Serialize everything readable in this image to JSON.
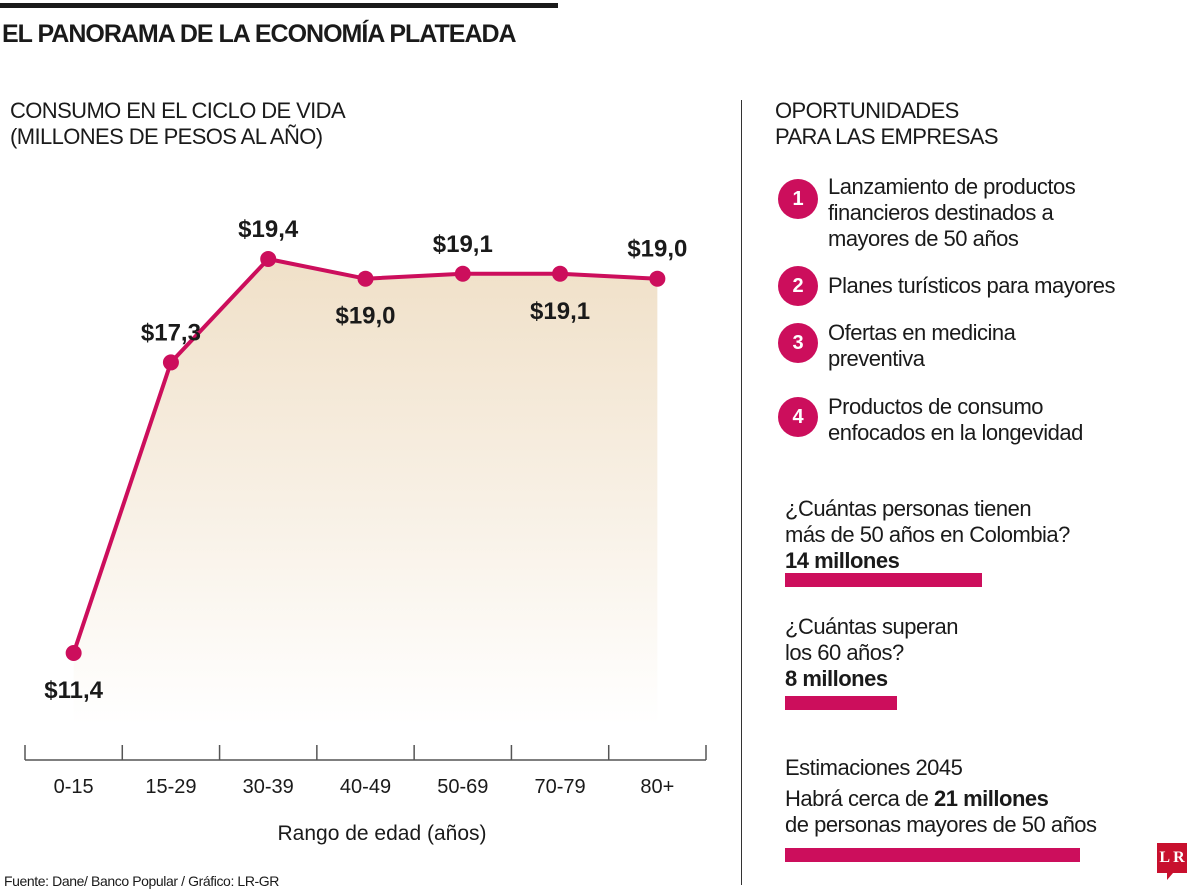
{
  "title": "EL PANORAMA DE LA ECONOMÍA PLATEADA",
  "chart_title_lines": [
    "CONSUMO EN EL CICLO DE VIDA",
    "(MILLONES DE PESOS AL AÑO)"
  ],
  "chart_data": {
    "type": "area",
    "title": "CONSUMO EN EL CICLO DE VIDA (MILLONES DE PESOS AL AÑO)",
    "xlabel": "Rango de edad (años)",
    "ylabel": "",
    "categories": [
      "0-15",
      "15-29",
      "30-39",
      "40-49",
      "50-69",
      "70-79",
      "80+"
    ],
    "values": [
      11.4,
      17.3,
      19.4,
      19.0,
      19.1,
      19.1,
      19.0
    ],
    "data_labels": [
      "$11,4",
      "$17,3",
      "$19,4",
      "$19,0",
      "$19,1",
      "$19,1",
      "$19,0"
    ],
    "label_position": [
      "below",
      "above",
      "above",
      "below",
      "above",
      "below",
      "above"
    ],
    "grid": false,
    "line_color": "#cc0e5c",
    "fill_color": "#f3e6d3"
  },
  "right": {
    "title_lines": [
      "OPORTUNIDADES",
      "PARA LAS EMPRESAS"
    ],
    "items": [
      {
        "num": "1",
        "text": "Lanzamiento de productos financieros destinados a mayores de 50 años"
      },
      {
        "num": "2",
        "text": "Planes turísticos para mayores"
      },
      {
        "num": "3",
        "text": "Ofertas en medicina preventiva"
      },
      {
        "num": "4",
        "text": "Productos de consumo enfocados en la longevidad"
      }
    ],
    "stats": [
      {
        "q1": "¿Cuántas personas tienen",
        "q2": "más de 50 años en Colombia?",
        "answer": "14 millones",
        "value": 14
      },
      {
        "q1": "¿Cuántas superan",
        "q2": "los 60 años?",
        "answer": "8 millones",
        "value": 8
      }
    ],
    "estimate": {
      "heading": "Estimaciones 2045",
      "pre": "Habrá cerca de ",
      "bold": "21 millones",
      "line2": "de personas mayores de 50 años",
      "value": 21
    }
  },
  "source": "Fuente: Dane/ Banco Popular / Gráfico: LR-GR",
  "logo": "LR",
  "accent": "#cc0e5c"
}
